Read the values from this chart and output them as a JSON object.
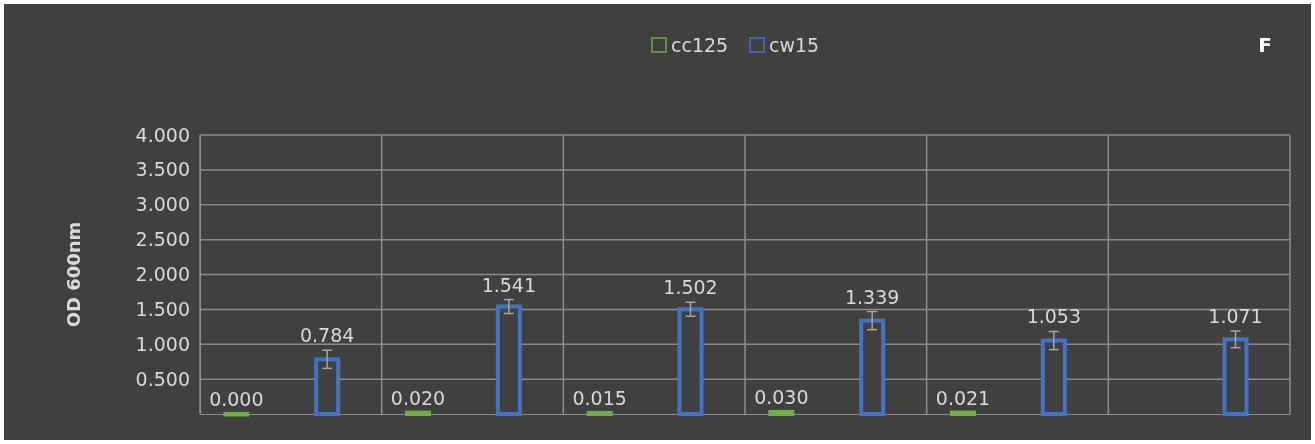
{
  "chart_data": {
    "type": "bar",
    "ylabel": "OD 600nm",
    "categories": [
      null,
      null,
      null,
      null,
      null,
      null
    ],
    "series": [
      {
        "name": "cc125",
        "color": "#70ad47",
        "values": [
          0.0,
          0.02,
          0.015,
          0.03,
          0.021,
          null
        ],
        "value_labels": [
          "0.000",
          "0.020",
          "0.015",
          "0.030",
          "0.021",
          null
        ]
      },
      {
        "name": "cw15",
        "color": "#4472c4",
        "values": [
          0.784,
          1.541,
          1.502,
          1.339,
          1.053,
          1.071
        ],
        "errors": [
          0.13,
          0.1,
          0.1,
          0.13,
          0.13,
          0.12
        ],
        "value_labels": [
          "0.784",
          "1.541",
          "1.502",
          "1.339",
          "1.053",
          "1.071"
        ]
      }
    ],
    "ylim": [
      0,
      4
    ],
    "yticks": [
      {
        "value": 0.5,
        "label": "0.500"
      },
      {
        "value": 1,
        "label": "1.000"
      },
      {
        "value": 1.5,
        "label": "1.500"
      },
      {
        "value": 2,
        "label": "2.000"
      },
      {
        "value": 2.5,
        "label": "2.500"
      },
      {
        "value": 3,
        "label": "3.000"
      },
      {
        "value": 3.5,
        "label": "3.500"
      },
      {
        "value": 4,
        "label": "4.000"
      }
    ],
    "grid": true,
    "legend": "top",
    "annotations": [
      "F"
    ]
  }
}
